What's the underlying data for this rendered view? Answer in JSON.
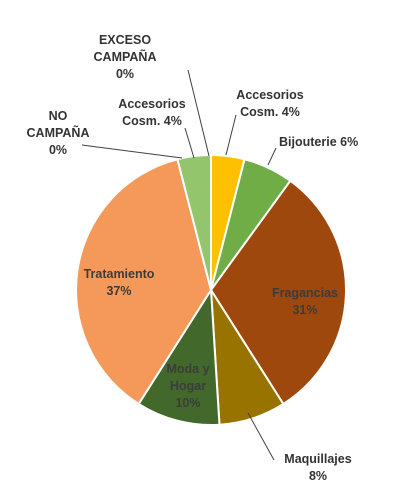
{
  "chart_data": {
    "type": "pie",
    "title": "",
    "categories": [
      "Accesorios Cosm.",
      "Bijouterie",
      "Fragancias",
      "Maquillajes",
      "Moda y Hogar",
      "Tratamiento",
      "Accesorios Cosm.",
      "NO CAMPAÑA",
      "EXCESO CAMPAÑA"
    ],
    "values": [
      4,
      6,
      31,
      8,
      10,
      37,
      4,
      0,
      0
    ],
    "data_labels": [
      [
        "Accesorios",
        "Cosm. 4%"
      ],
      [
        "Bijouterie 6%"
      ],
      [
        "Fragancias",
        "31%"
      ],
      [
        "Maquillajes",
        "8%"
      ],
      [
        "Moda y",
        "Hogar",
        "10%"
      ],
      [
        "Tratamiento",
        "37%"
      ],
      [
        "Accesorios",
        "Cosm. 4%"
      ],
      [
        "NO",
        "CAMPAÑA",
        "0%"
      ],
      [
        "EXCESO",
        "CAMPAÑA",
        "0%"
      ]
    ],
    "colors": [
      "#ffc000",
      "#70ad47",
      "#9e480e",
      "#997300",
      "#43682b",
      "#f4995a",
      "#92c56c",
      "#5b9bd5",
      "#ed7d31"
    ],
    "label_colors": [
      "#333333",
      "#333333",
      "#3c3c3c",
      "#333333",
      "#3c3c3c",
      "#3c3c3c",
      "#333333",
      "#333333",
      "#333333"
    ],
    "legend": "none",
    "start": "12 o'clock",
    "direction": "clockwise"
  }
}
